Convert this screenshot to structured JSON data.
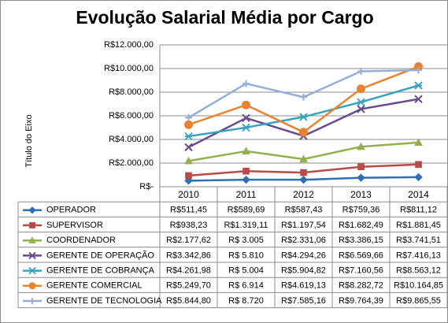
{
  "chart_data": {
    "type": "line",
    "title": "Evolução Salarial Média por Cargo",
    "ylabel": "Título do Eixo",
    "xlabel": "",
    "categories": [
      "2010",
      "2011",
      "2012",
      "2013",
      "2014"
    ],
    "ylim": [
      0,
      12000
    ],
    "ytick_values": [
      0,
      2000,
      4000,
      6000,
      8000,
      10000,
      12000
    ],
    "ytick_labels": [
      "R$-",
      "R$2.000,00",
      "R$4.000,00",
      "R$6.000,00",
      "R$8.000,00",
      "R$10.000,00",
      "R$12.000,00"
    ],
    "grid": true,
    "legend_placement": "table-below",
    "series": [
      {
        "name": "OPERADOR",
        "color": "#2e6fb5",
        "marker": "diamond",
        "values": [
          511.45,
          589.69,
          587.43,
          759.36,
          811.12
        ],
        "labels": [
          "R$511,45",
          "R$589,69",
          "R$587,43",
          "R$759,36",
          "R$811,12"
        ]
      },
      {
        "name": "SUPERVISOR",
        "color": "#b84a47",
        "marker": "square",
        "values": [
          938.23,
          1319.11,
          1197.54,
          1682.49,
          1881.45
        ],
        "labels": [
          "R$938,23",
          "R$1.319,11",
          "R$1.197,54",
          "R$1.682,49",
          "R$1.881,45"
        ]
      },
      {
        "name": "COORDENADOR",
        "color": "#92b04c",
        "marker": "triangle",
        "values": [
          2177.62,
          3005,
          2331.06,
          3386.15,
          3741.51
        ],
        "labels": [
          "R$2.177,62",
          "R$ 3.005",
          "R$2.331,06",
          "R$3.386,15",
          "R$3.741,51"
        ]
      },
      {
        "name": "GERENTE DE OPERAÇÃO",
        "color": "#6a4a8e",
        "marker": "x",
        "values": [
          3342.86,
          5810,
          4294.26,
          6569.66,
          7416.13
        ],
        "labels": [
          "R$3.342,86",
          "R$ 5.810",
          "R$4.294,26",
          "R$6.569,66",
          "R$7.416,13"
        ]
      },
      {
        "name": "GERENTE DE COBRANÇA",
        "color": "#38a3c0",
        "marker": "asterisk",
        "values": [
          4261.98,
          5004,
          5904.82,
          7160.56,
          8563.12
        ],
        "labels": [
          "R$4.261,98",
          "R$ 5.004",
          "R$5.904,82",
          "R$7.160,56",
          "R$8.563,12"
        ]
      },
      {
        "name": "GERENTE COMERCIAL",
        "color": "#e8832f",
        "marker": "circle",
        "values": [
          5249.7,
          6914,
          4619.13,
          8282.72,
          10164.85
        ],
        "labels": [
          "R$5.249,70",
          "R$ 6.914",
          "R$4.619,13",
          "R$8.282,72",
          "R$10.164,85"
        ]
      },
      {
        "name": "GERENTE DE TECNOLOGIA",
        "color": "#93aedb",
        "marker": "plus",
        "values": [
          5844.8,
          8720,
          7585.16,
          9764.39,
          9865.55
        ],
        "labels": [
          "R$5.844,80",
          "R$ 8.720",
          "R$7.585,16",
          "R$9.764,39",
          "R$9.865,55"
        ]
      }
    ]
  }
}
